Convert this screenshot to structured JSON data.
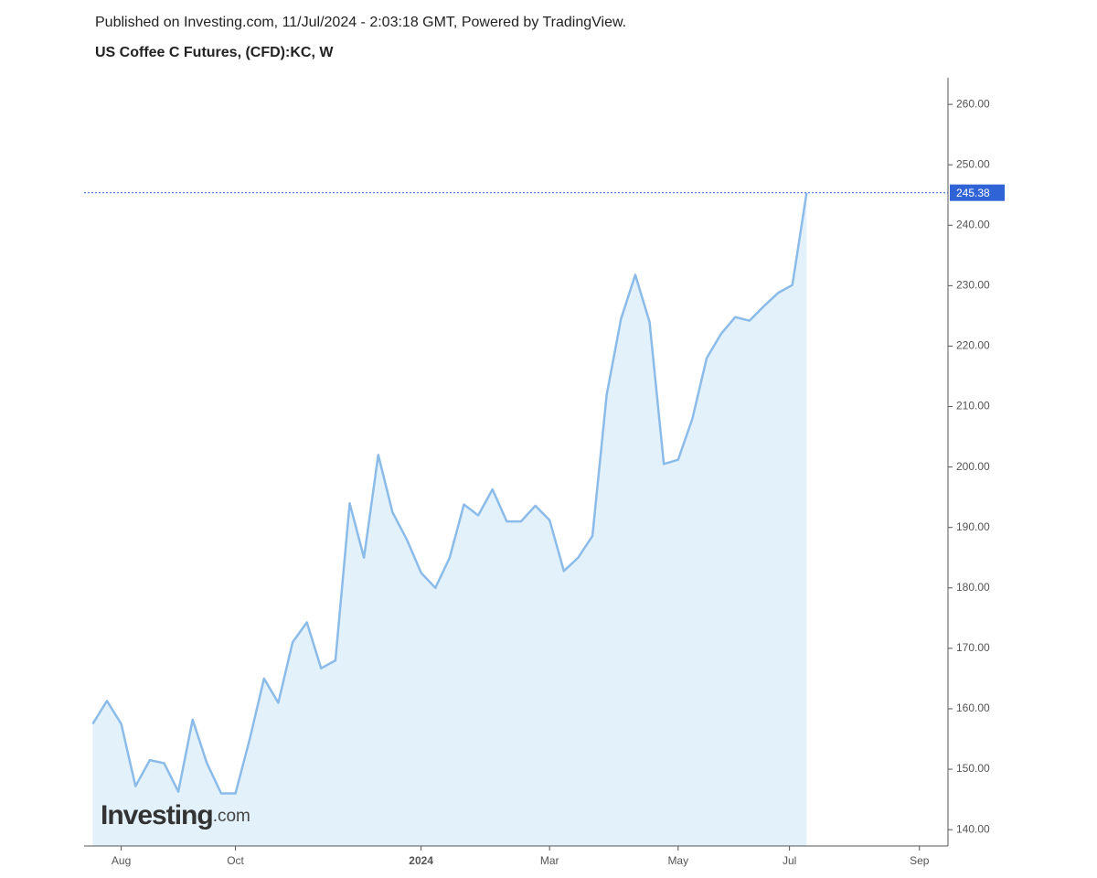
{
  "chart_data": {
    "type": "area",
    "header": "Published on Investing.com, 11/Jul/2024 - 2:03:18 GMT, Powered by TradingView.",
    "title": "US Coffee C Futures, (CFD):KC, W",
    "logo_main": "Investing",
    "logo_suffix": ".com",
    "x": [
      0,
      1,
      2,
      3,
      4,
      5,
      6,
      7,
      8,
      9,
      10,
      11,
      12,
      13,
      14,
      15,
      16,
      17,
      18,
      19,
      20,
      21,
      22,
      23,
      24,
      25,
      26,
      27,
      28,
      29,
      30,
      31,
      32,
      33,
      34,
      35,
      36,
      37,
      38,
      39,
      40,
      41,
      42,
      43,
      44,
      45,
      46,
      47,
      48,
      49,
      50
    ],
    "values": [
      157.5,
      161.3,
      157.5,
      147.2,
      151.5,
      151,
      146.3,
      158.2,
      151,
      146,
      146,
      155,
      165,
      161,
      171,
      174.3,
      166.7,
      168,
      194,
      185,
      202,
      192.5,
      188,
      182.5,
      180,
      185,
      193.8,
      192,
      196.3,
      191,
      191,
      193.6,
      191.2,
      182.8,
      185,
      188.6,
      212,
      224.5,
      231.8,
      224,
      200.5,
      201.2,
      208,
      218,
      222,
      224.8,
      224.2,
      226.6,
      228.8,
      230.1,
      245.38
    ],
    "color": "#8bbbe9",
    "fill_color": "#e3f1fb",
    "price_line": {
      "value": 245.38,
      "label": "245.38",
      "color": "#2f63d6"
    },
    "xlim": [
      -0.6,
      59.9
    ],
    "xticks": [
      {
        "value": 2,
        "label": "Aug"
      },
      {
        "value": 10,
        "label": "Oct"
      },
      {
        "value": 23,
        "label": "2024"
      },
      {
        "value": 32,
        "label": "Mar"
      },
      {
        "value": 41,
        "label": "May"
      },
      {
        "value": 48.8,
        "label": "Jul"
      },
      {
        "value": 57.9,
        "label": "Sep"
      }
    ],
    "ylim": [
      137.3,
      264.4
    ],
    "yticks": [
      {
        "value": 140,
        "label": "140.00"
      },
      {
        "value": 150,
        "label": "150.00"
      },
      {
        "value": 160,
        "label": "160.00"
      },
      {
        "value": 170,
        "label": "170.00"
      },
      {
        "value": 180,
        "label": "180.00"
      },
      {
        "value": 190,
        "label": "190.00"
      },
      {
        "value": 200,
        "label": "200.00"
      },
      {
        "value": 210,
        "label": "210.00"
      },
      {
        "value": 220,
        "label": "220.00"
      },
      {
        "value": 230,
        "label": "230.00"
      },
      {
        "value": 240,
        "label": "240.00"
      },
      {
        "value": 250,
        "label": "250.00"
      },
      {
        "value": 260,
        "label": "260.00"
      }
    ],
    "grid": false
  }
}
